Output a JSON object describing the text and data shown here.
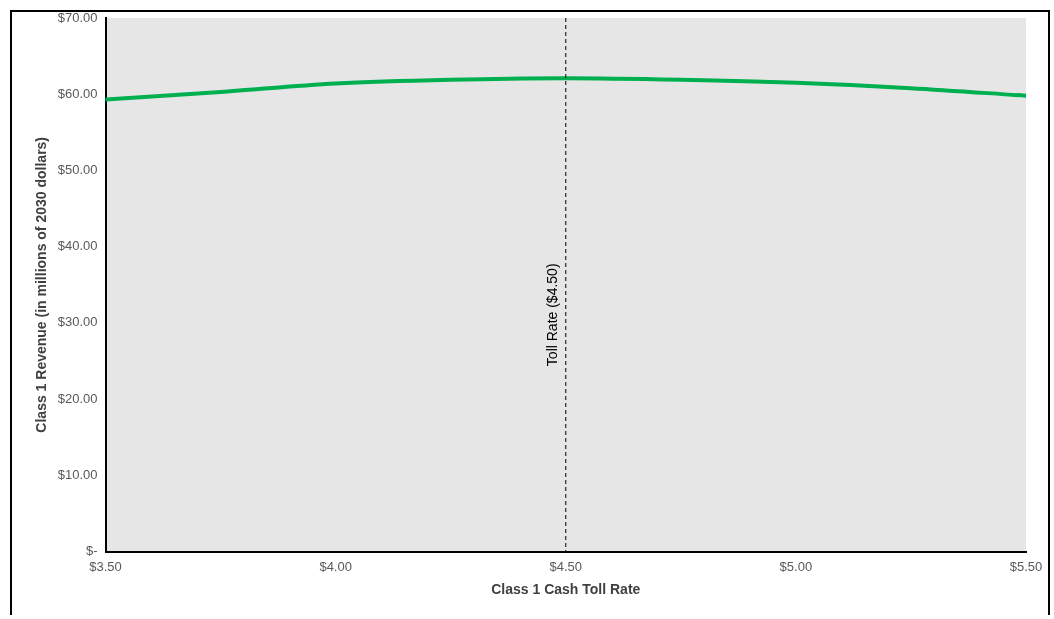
{
  "chart_data": {
    "type": "line",
    "xlabel": "Class 1 Cash Toll Rate",
    "ylabel": "Class 1 Revenue (in millions of 2030 dollars)",
    "x": [
      3.5,
      3.75,
      4.0,
      4.25,
      4.5,
      4.75,
      5.0,
      5.25,
      5.5
    ],
    "series": [
      {
        "color": "#00b050",
        "values": [
          59.3,
          60.3,
          61.4,
          61.9,
          62.1,
          61.9,
          61.5,
          60.8,
          59.8
        ]
      }
    ],
    "xlim": [
      3.5,
      5.5
    ],
    "xticks": [
      {
        "value": 3.5,
        "label": "$3.50"
      },
      {
        "value": 4,
        "label": "$4.00"
      },
      {
        "value": 4.5,
        "label": "$4.50"
      },
      {
        "value": 5,
        "label": "$5.00"
      },
      {
        "value": 5.5,
        "label": "$5.50"
      }
    ],
    "ylim": [
      0,
      70
    ],
    "yticks": [
      {
        "value": 0,
        "label": "$-"
      },
      {
        "value": 10,
        "label": "$10.00"
      },
      {
        "value": 20,
        "label": "$20.00"
      },
      {
        "value": 30,
        "label": "$30.00"
      },
      {
        "value": 40,
        "label": "$40.00"
      },
      {
        "value": 50,
        "label": "$50.00"
      },
      {
        "value": 60,
        "label": "$60.00"
      },
      {
        "value": 70,
        "label": "$70.00"
      }
    ],
    "ref_lines": [
      {
        "axis": "x",
        "value": 4.5,
        "label": "Toll Rate ($4.50)",
        "color": "#000000",
        "line_style": "dashed"
      }
    ],
    "grid": false,
    "legend": false,
    "marker": "none",
    "line_style": "solid"
  }
}
